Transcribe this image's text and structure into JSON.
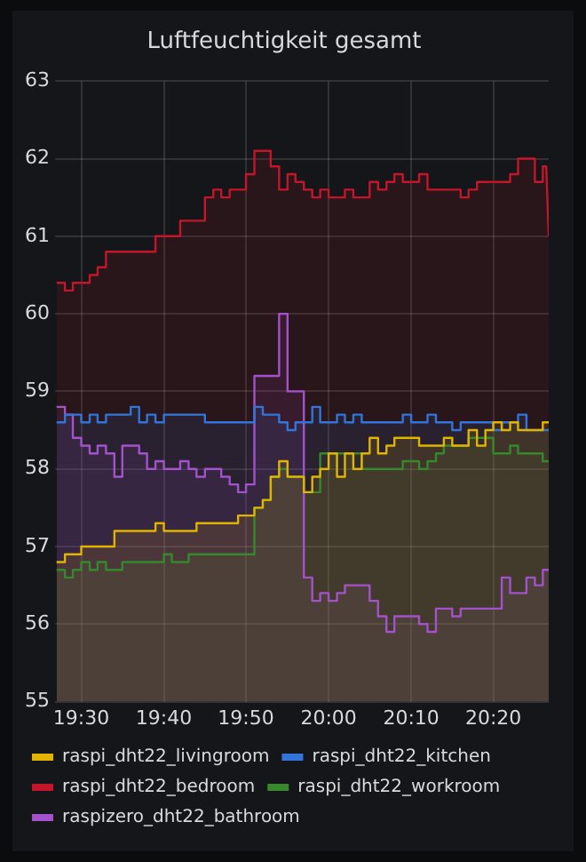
{
  "chart_data": {
    "type": "area",
    "title": "Luftfeuchtigkeit gesamt",
    "xlim": [
      19.447,
      20.445
    ],
    "xticks": [
      {
        "value": 19.5,
        "label": "19:30"
      },
      {
        "value": 19.667,
        "label": "19:40"
      },
      {
        "value": 19.833,
        "label": "19:50"
      },
      {
        "value": 20.0,
        "label": "20:00"
      },
      {
        "value": 20.167,
        "label": "20:10"
      },
      {
        "value": 20.333,
        "label": "20:20"
      }
    ],
    "ylim": [
      55,
      63
    ],
    "yticks": [
      55,
      56,
      57,
      58,
      59,
      60,
      61,
      62,
      63
    ],
    "grid": true,
    "legend": "bottom",
    "series": [
      {
        "name": "raspi_dht22_livingroom",
        "color": "#e0b400",
        "x": [
          19.45,
          19.467,
          19.467,
          19.5,
          19.5,
          19.567,
          19.567,
          19.65,
          19.65,
          19.667,
          19.667,
          19.733,
          19.733,
          19.817,
          19.817,
          19.85,
          19.85,
          19.867,
          19.867,
          19.883,
          19.883,
          19.9,
          19.9,
          19.917,
          19.917,
          19.95,
          19.95,
          19.967,
          19.967,
          19.983,
          19.983,
          20.0,
          20.0,
          20.017,
          20.017,
          20.033,
          20.033,
          20.05,
          20.05,
          20.067,
          20.067,
          20.083,
          20.083,
          20.1,
          20.1,
          20.117,
          20.117,
          20.133,
          20.133,
          20.183,
          20.183,
          20.233,
          20.233,
          20.25,
          20.25,
          20.283,
          20.283,
          20.3,
          20.3,
          20.317,
          20.317,
          20.333,
          20.333,
          20.35,
          20.35,
          20.367,
          20.367,
          20.383,
          20.383,
          20.433,
          20.433,
          20.445
        ],
        "values": [
          56.8,
          56.8,
          56.9,
          56.9,
          57.0,
          57.0,
          57.2,
          57.2,
          57.3,
          57.3,
          57.2,
          57.2,
          57.3,
          57.3,
          57.4,
          57.4,
          57.5,
          57.5,
          57.6,
          57.6,
          57.9,
          57.9,
          58.1,
          58.1,
          57.9,
          57.9,
          57.7,
          57.7,
          57.9,
          57.9,
          58.0,
          58.0,
          58.2,
          58.2,
          57.9,
          57.9,
          58.2,
          58.2,
          58.0,
          58.0,
          58.2,
          58.2,
          58.4,
          58.4,
          58.2,
          58.2,
          58.3,
          58.3,
          58.4,
          58.4,
          58.3,
          58.3,
          58.4,
          58.4,
          58.3,
          58.3,
          58.5,
          58.5,
          58.3,
          58.3,
          58.5,
          58.5,
          58.6,
          58.6,
          58.5,
          58.5,
          58.6,
          58.6,
          58.5,
          58.5,
          58.6,
          58.6
        ]
      },
      {
        "name": "raspi_dht22_kitchen",
        "color": "#3274d9",
        "x": [
          19.45,
          19.467,
          19.467,
          19.5,
          19.5,
          19.517,
          19.517,
          19.533,
          19.533,
          19.55,
          19.55,
          19.6,
          19.6,
          19.617,
          19.617,
          19.633,
          19.633,
          19.65,
          19.65,
          19.667,
          19.667,
          19.75,
          19.75,
          19.85,
          19.85,
          19.867,
          19.867,
          19.9,
          19.9,
          19.917,
          19.917,
          19.933,
          19.933,
          19.967,
          19.967,
          19.983,
          19.983,
          20.017,
          20.017,
          20.033,
          20.033,
          20.05,
          20.05,
          20.067,
          20.067,
          20.15,
          20.15,
          20.167,
          20.167,
          20.2,
          20.2,
          20.217,
          20.217,
          20.25,
          20.25,
          20.267,
          20.267,
          20.333,
          20.333,
          20.35,
          20.35,
          20.383,
          20.383,
          20.4,
          20.4,
          20.445
        ],
        "values": [
          58.6,
          58.6,
          58.7,
          58.7,
          58.6,
          58.6,
          58.7,
          58.7,
          58.6,
          58.6,
          58.7,
          58.7,
          58.8,
          58.8,
          58.6,
          58.6,
          58.7,
          58.7,
          58.6,
          58.6,
          58.7,
          58.7,
          58.6,
          58.6,
          58.8,
          58.8,
          58.7,
          58.7,
          58.6,
          58.6,
          58.5,
          58.5,
          58.6,
          58.6,
          58.8,
          58.8,
          58.6,
          58.6,
          58.7,
          58.7,
          58.6,
          58.6,
          58.7,
          58.7,
          58.6,
          58.6,
          58.7,
          58.7,
          58.6,
          58.6,
          58.7,
          58.7,
          58.6,
          58.6,
          58.5,
          58.5,
          58.6,
          58.6,
          58.5,
          58.5,
          58.6,
          58.6,
          58.7,
          58.7,
          58.5,
          58.5
        ]
      },
      {
        "name": "raspi_dht22_bedroom",
        "color": "#c4162a",
        "x": [
          19.45,
          19.467,
          19.467,
          19.483,
          19.483,
          19.517,
          19.517,
          19.533,
          19.533,
          19.55,
          19.55,
          19.65,
          19.65,
          19.7,
          19.7,
          19.75,
          19.75,
          19.767,
          19.767,
          19.783,
          19.783,
          19.8,
          19.8,
          19.833,
          19.833,
          19.85,
          19.85,
          19.883,
          19.883,
          19.9,
          19.9,
          19.917,
          19.917,
          19.933,
          19.933,
          19.95,
          19.95,
          19.967,
          19.967,
          19.983,
          19.983,
          20.0,
          20.0,
          20.033,
          20.033,
          20.05,
          20.05,
          20.083,
          20.083,
          20.1,
          20.1,
          20.117,
          20.117,
          20.133,
          20.133,
          20.15,
          20.15,
          20.183,
          20.183,
          20.2,
          20.2,
          20.267,
          20.267,
          20.283,
          20.283,
          20.3,
          20.3,
          20.367,
          20.367,
          20.383,
          20.383,
          20.417,
          20.417,
          20.433,
          20.433,
          20.44,
          20.445
        ],
        "values": [
          60.4,
          60.4,
          60.3,
          60.3,
          60.4,
          60.4,
          60.5,
          60.5,
          60.6,
          60.6,
          60.8,
          60.8,
          61.0,
          61.0,
          61.2,
          61.2,
          61.5,
          61.5,
          61.6,
          61.6,
          61.5,
          61.5,
          61.6,
          61.6,
          61.8,
          61.8,
          62.1,
          62.1,
          61.9,
          61.9,
          61.6,
          61.6,
          61.8,
          61.8,
          61.7,
          61.7,
          61.6,
          61.6,
          61.5,
          61.5,
          61.6,
          61.6,
          61.5,
          61.5,
          61.6,
          61.6,
          61.5,
          61.5,
          61.7,
          61.7,
          61.6,
          61.6,
          61.7,
          61.7,
          61.8,
          61.8,
          61.7,
          61.7,
          61.8,
          61.8,
          61.6,
          61.6,
          61.5,
          61.5,
          61.6,
          61.6,
          61.7,
          61.7,
          61.8,
          61.8,
          62.0,
          62.0,
          61.7,
          61.7,
          61.9,
          61.9,
          61.0
        ]
      },
      {
        "name": "raspi_dht22_workroom",
        "color": "#37872d",
        "x": [
          19.45,
          19.467,
          19.467,
          19.483,
          19.483,
          19.5,
          19.5,
          19.517,
          19.517,
          19.533,
          19.533,
          19.55,
          19.55,
          19.583,
          19.583,
          19.667,
          19.667,
          19.683,
          19.683,
          19.717,
          19.717,
          19.85,
          19.85,
          19.867,
          19.867,
          19.883,
          19.883,
          19.9,
          19.9,
          19.917,
          19.917,
          19.95,
          19.95,
          19.983,
          19.983,
          20.067,
          20.067,
          20.15,
          20.15,
          20.183,
          20.183,
          20.2,
          20.2,
          20.217,
          20.217,
          20.233,
          20.233,
          20.283,
          20.283,
          20.333,
          20.333,
          20.367,
          20.367,
          20.383,
          20.383,
          20.433,
          20.433,
          20.445
        ],
        "values": [
          56.7,
          56.7,
          56.6,
          56.6,
          56.7,
          56.7,
          56.8,
          56.8,
          56.7,
          56.7,
          56.8,
          56.8,
          56.7,
          56.7,
          56.8,
          56.8,
          56.9,
          56.9,
          56.8,
          56.8,
          56.9,
          56.9,
          57.5,
          57.5,
          57.6,
          57.6,
          57.9,
          57.9,
          58.0,
          58.0,
          57.9,
          57.9,
          57.7,
          57.7,
          58.2,
          58.2,
          58.0,
          58.0,
          58.1,
          58.1,
          58.0,
          58.0,
          58.1,
          58.1,
          58.2,
          58.2,
          58.3,
          58.3,
          58.4,
          58.4,
          58.2,
          58.2,
          58.3,
          58.3,
          58.2,
          58.2,
          58.1,
          58.1
        ]
      },
      {
        "name": "raspizero_dht22_bathroom",
        "color": "#a352cc",
        "x": [
          19.45,
          19.467,
          19.467,
          19.483,
          19.483,
          19.5,
          19.5,
          19.517,
          19.517,
          19.533,
          19.533,
          19.55,
          19.55,
          19.567,
          19.567,
          19.583,
          19.583,
          19.617,
          19.617,
          19.633,
          19.633,
          19.65,
          19.65,
          19.667,
          19.667,
          19.7,
          19.7,
          19.717,
          19.717,
          19.733,
          19.733,
          19.75,
          19.75,
          19.783,
          19.783,
          19.8,
          19.8,
          19.817,
          19.817,
          19.833,
          19.833,
          19.85,
          19.85,
          19.9,
          19.9,
          19.917,
          19.917,
          19.95,
          19.95,
          19.967,
          19.967,
          19.983,
          19.983,
          20.0,
          20.0,
          20.017,
          20.017,
          20.033,
          20.033,
          20.083,
          20.083,
          20.1,
          20.1,
          20.117,
          20.117,
          20.133,
          20.133,
          20.183,
          20.183,
          20.2,
          20.2,
          20.217,
          20.217,
          20.25,
          20.25,
          20.267,
          20.267,
          20.35,
          20.35,
          20.367,
          20.367,
          20.4,
          20.4,
          20.417,
          20.417,
          20.433,
          20.433,
          20.445
        ],
        "values": [
          58.8,
          58.8,
          58.7,
          58.7,
          58.4,
          58.4,
          58.3,
          58.3,
          58.2,
          58.2,
          58.3,
          58.3,
          58.2,
          58.2,
          57.9,
          57.9,
          58.3,
          58.3,
          58.2,
          58.2,
          58.0,
          58.0,
          58.1,
          58.1,
          58.0,
          58.0,
          58.1,
          58.1,
          58.0,
          58.0,
          57.9,
          57.9,
          58.0,
          58.0,
          57.9,
          57.9,
          57.8,
          57.8,
          57.7,
          57.7,
          57.8,
          57.8,
          59.2,
          59.2,
          60.0,
          60.0,
          59.0,
          59.0,
          56.6,
          56.6,
          56.3,
          56.3,
          56.4,
          56.4,
          56.3,
          56.3,
          56.4,
          56.4,
          56.5,
          56.5,
          56.3,
          56.3,
          56.1,
          56.1,
          55.9,
          55.9,
          56.1,
          56.1,
          56.0,
          56.0,
          55.9,
          55.9,
          56.2,
          56.2,
          56.1,
          56.1,
          56.2,
          56.2,
          56.6,
          56.6,
          56.4,
          56.4,
          56.6,
          56.6,
          56.5,
          56.5,
          56.7,
          56.7
        ]
      }
    ]
  }
}
